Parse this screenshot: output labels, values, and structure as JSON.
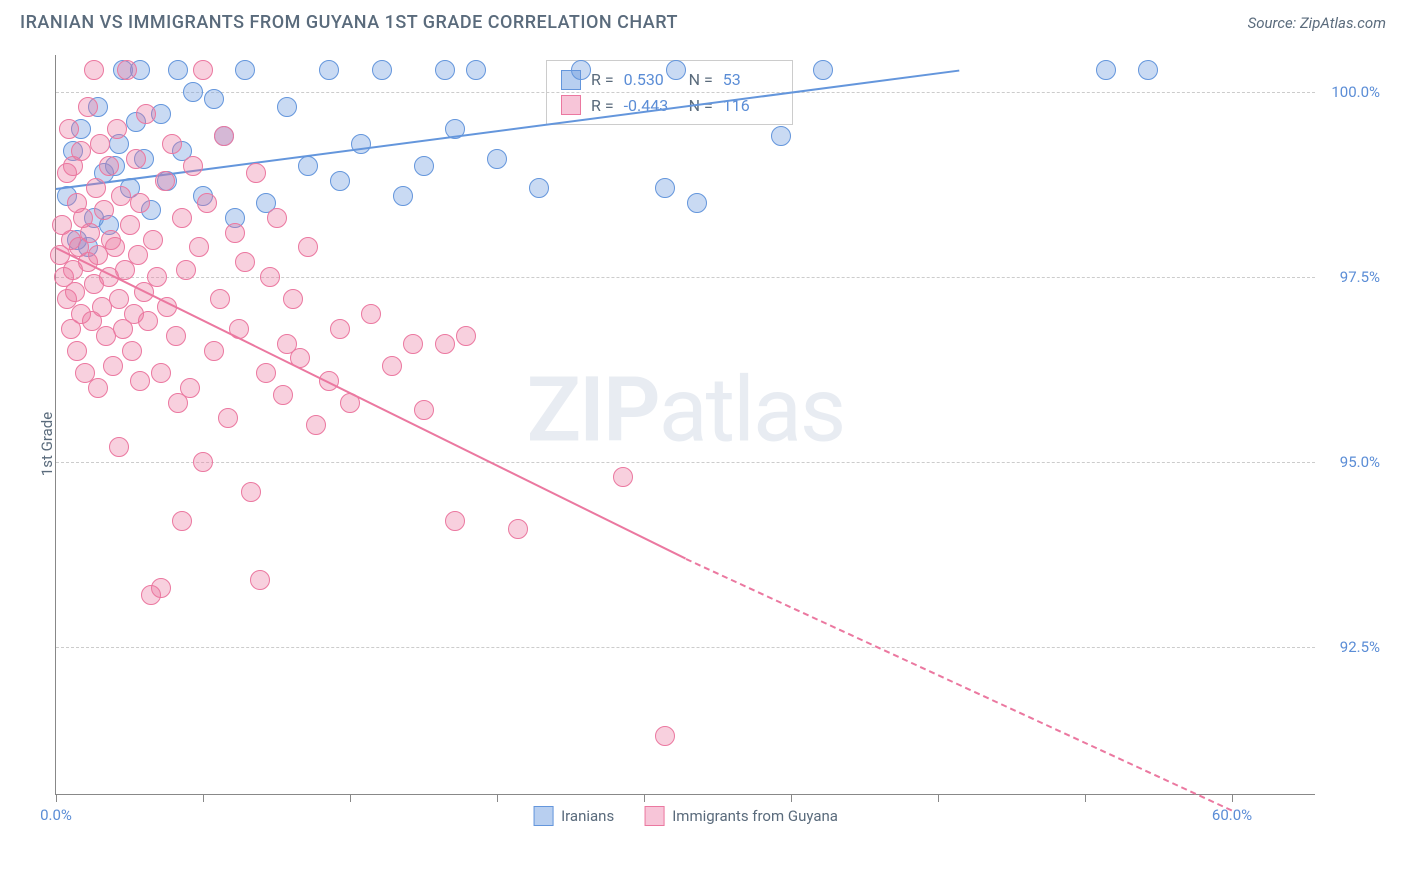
{
  "header": {
    "title": "IRANIAN VS IMMIGRANTS FROM GUYANA 1ST GRADE CORRELATION CHART",
    "source": "Source: ZipAtlas.com"
  },
  "watermark": {
    "zip": "ZIP",
    "atlas": "atlas"
  },
  "chart": {
    "type": "scatter",
    "ylabel": "1st Grade",
    "background_color": "#ffffff",
    "grid_color": "#cccccc",
    "axis_color": "#888888",
    "tick_label_color": "#5b8dd6",
    "tick_fontsize": 15,
    "label_fontsize": 15,
    "xlim": [
      0,
      60
    ],
    "ylim": [
      90.5,
      100.5
    ],
    "xticks": [
      0,
      7,
      14,
      21,
      28,
      35,
      42,
      49,
      56
    ],
    "xtick_labels": {
      "0": "0.0%",
      "56": "60.0%"
    },
    "yticks": [
      92.5,
      95.0,
      97.5,
      100.0
    ],
    "ytick_labels": [
      "92.5%",
      "95.0%",
      "97.5%",
      "100.0%"
    ],
    "marker_radius": 10,
    "marker_opacity": 0.35,
    "line_width": 2,
    "series": [
      {
        "name": "Iranians",
        "color_fill": "rgba(100,150,220,0.35)",
        "color_stroke": "#6496dc",
        "swatch_fill": "#b8cff0",
        "swatch_border": "#6496dc",
        "R": "0.530",
        "N": "53",
        "trend": {
          "x1": 0,
          "y1": 98.7,
          "x2": 43,
          "y2": 100.3,
          "dashed_after": false
        },
        "points": [
          [
            0.5,
            98.6
          ],
          [
            0.8,
            99.2
          ],
          [
            1.0,
            98.0
          ],
          [
            1.2,
            99.5
          ],
          [
            1.5,
            97.9
          ],
          [
            1.8,
            98.3
          ],
          [
            2.0,
            99.8
          ],
          [
            2.3,
            98.9
          ],
          [
            2.5,
            98.2
          ],
          [
            2.8,
            99.0
          ],
          [
            3.0,
            99.3
          ],
          [
            3.2,
            100.3
          ],
          [
            3.5,
            98.7
          ],
          [
            3.8,
            99.6
          ],
          [
            4.0,
            100.3
          ],
          [
            4.2,
            99.1
          ],
          [
            4.5,
            98.4
          ],
          [
            5.0,
            99.7
          ],
          [
            5.3,
            98.8
          ],
          [
            5.8,
            100.3
          ],
          [
            6.0,
            99.2
          ],
          [
            6.5,
            100.0
          ],
          [
            7.0,
            98.6
          ],
          [
            7.5,
            99.9
          ],
          [
            8.0,
            99.4
          ],
          [
            8.5,
            98.3
          ],
          [
            9.0,
            100.3
          ],
          [
            10.0,
            98.5
          ],
          [
            11.0,
            99.8
          ],
          [
            12.0,
            99.0
          ],
          [
            13.0,
            100.3
          ],
          [
            13.5,
            98.8
          ],
          [
            14.5,
            99.3
          ],
          [
            15.5,
            100.3
          ],
          [
            16.5,
            98.6
          ],
          [
            17.5,
            99.0
          ],
          [
            18.5,
            100.3
          ],
          [
            19.0,
            99.5
          ],
          [
            20.0,
            100.3
          ],
          [
            21.0,
            99.1
          ],
          [
            23.0,
            98.7
          ],
          [
            25.0,
            100.3
          ],
          [
            29.0,
            98.7
          ],
          [
            29.5,
            100.3
          ],
          [
            30.5,
            98.5
          ],
          [
            34.5,
            99.4
          ],
          [
            36.5,
            100.3
          ],
          [
            50.0,
            100.3
          ],
          [
            52.0,
            100.3
          ]
        ]
      },
      {
        "name": "Immigrants from Guyana",
        "color_fill": "rgba(235,120,160,0.35)",
        "color_stroke": "#eb78a0",
        "swatch_fill": "#f7c5d8",
        "swatch_border": "#eb78a0",
        "R": "-0.443",
        "N": "116",
        "trend": {
          "x1": 0,
          "y1": 97.9,
          "x2": 30,
          "y2": 93.7,
          "x3": 56,
          "y3": 90.3,
          "dashed_after": true
        },
        "points": [
          [
            0.2,
            97.8
          ],
          [
            0.3,
            98.2
          ],
          [
            0.4,
            97.5
          ],
          [
            0.5,
            98.9
          ],
          [
            0.5,
            97.2
          ],
          [
            0.6,
            99.5
          ],
          [
            0.7,
            96.8
          ],
          [
            0.7,
            98.0
          ],
          [
            0.8,
            97.6
          ],
          [
            0.8,
            99.0
          ],
          [
            0.9,
            97.3
          ],
          [
            1.0,
            98.5
          ],
          [
            1.0,
            96.5
          ],
          [
            1.1,
            97.9
          ],
          [
            1.2,
            99.2
          ],
          [
            1.2,
            97.0
          ],
          [
            1.3,
            98.3
          ],
          [
            1.4,
            96.2
          ],
          [
            1.5,
            97.7
          ],
          [
            1.5,
            99.8
          ],
          [
            1.6,
            98.1
          ],
          [
            1.7,
            96.9
          ],
          [
            1.8,
            97.4
          ],
          [
            1.8,
            100.3
          ],
          [
            1.9,
            98.7
          ],
          [
            2.0,
            96.0
          ],
          [
            2.0,
            97.8
          ],
          [
            2.1,
            99.3
          ],
          [
            2.2,
            97.1
          ],
          [
            2.3,
            98.4
          ],
          [
            2.4,
            96.7
          ],
          [
            2.5,
            97.5
          ],
          [
            2.5,
            99.0
          ],
          [
            2.6,
            98.0
          ],
          [
            2.7,
            96.3
          ],
          [
            2.8,
            97.9
          ],
          [
            2.9,
            99.5
          ],
          [
            3.0,
            97.2
          ],
          [
            3.0,
            95.2
          ],
          [
            3.1,
            98.6
          ],
          [
            3.2,
            96.8
          ],
          [
            3.3,
            97.6
          ],
          [
            3.4,
            100.3
          ],
          [
            3.5,
            98.2
          ],
          [
            3.6,
            96.5
          ],
          [
            3.7,
            97.0
          ],
          [
            3.8,
            99.1
          ],
          [
            3.9,
            97.8
          ],
          [
            4.0,
            96.1
          ],
          [
            4.0,
            98.5
          ],
          [
            4.2,
            97.3
          ],
          [
            4.3,
            99.7
          ],
          [
            4.4,
            96.9
          ],
          [
            4.5,
            93.2
          ],
          [
            4.6,
            98.0
          ],
          [
            4.8,
            97.5
          ],
          [
            5.0,
            96.2
          ],
          [
            5.0,
            93.3
          ],
          [
            5.2,
            98.8
          ],
          [
            5.3,
            97.1
          ],
          [
            5.5,
            99.3
          ],
          [
            5.7,
            96.7
          ],
          [
            5.8,
            95.8
          ],
          [
            6.0,
            98.3
          ],
          [
            6.0,
            94.2
          ],
          [
            6.2,
            97.6
          ],
          [
            6.4,
            96.0
          ],
          [
            6.5,
            99.0
          ],
          [
            6.8,
            97.9
          ],
          [
            7.0,
            95.0
          ],
          [
            7.0,
            100.3
          ],
          [
            7.2,
            98.5
          ],
          [
            7.5,
            96.5
          ],
          [
            7.8,
            97.2
          ],
          [
            8.0,
            99.4
          ],
          [
            8.2,
            95.6
          ],
          [
            8.5,
            98.1
          ],
          [
            8.7,
            96.8
          ],
          [
            9.0,
            97.7
          ],
          [
            9.3,
            94.6
          ],
          [
            9.5,
            98.9
          ],
          [
            9.7,
            93.4
          ],
          [
            10.0,
            96.2
          ],
          [
            10.2,
            97.5
          ],
          [
            10.5,
            98.3
          ],
          [
            10.8,
            95.9
          ],
          [
            11.0,
            96.6
          ],
          [
            11.3,
            97.2
          ],
          [
            11.6,
            96.4
          ],
          [
            12.0,
            97.9
          ],
          [
            12.4,
            95.5
          ],
          [
            13.0,
            96.1
          ],
          [
            13.5,
            96.8
          ],
          [
            14.0,
            95.8
          ],
          [
            15.0,
            97.0
          ],
          [
            16.0,
            96.3
          ],
          [
            17.0,
            96.6
          ],
          [
            17.5,
            95.7
          ],
          [
            18.5,
            96.6
          ],
          [
            19.0,
            94.2
          ],
          [
            19.5,
            96.7
          ],
          [
            22.0,
            94.1
          ],
          [
            27.0,
            94.8
          ],
          [
            29.0,
            91.3
          ]
        ]
      }
    ],
    "bottom_legend": [
      "Iranians",
      "Immigrants from Guyana"
    ]
  }
}
